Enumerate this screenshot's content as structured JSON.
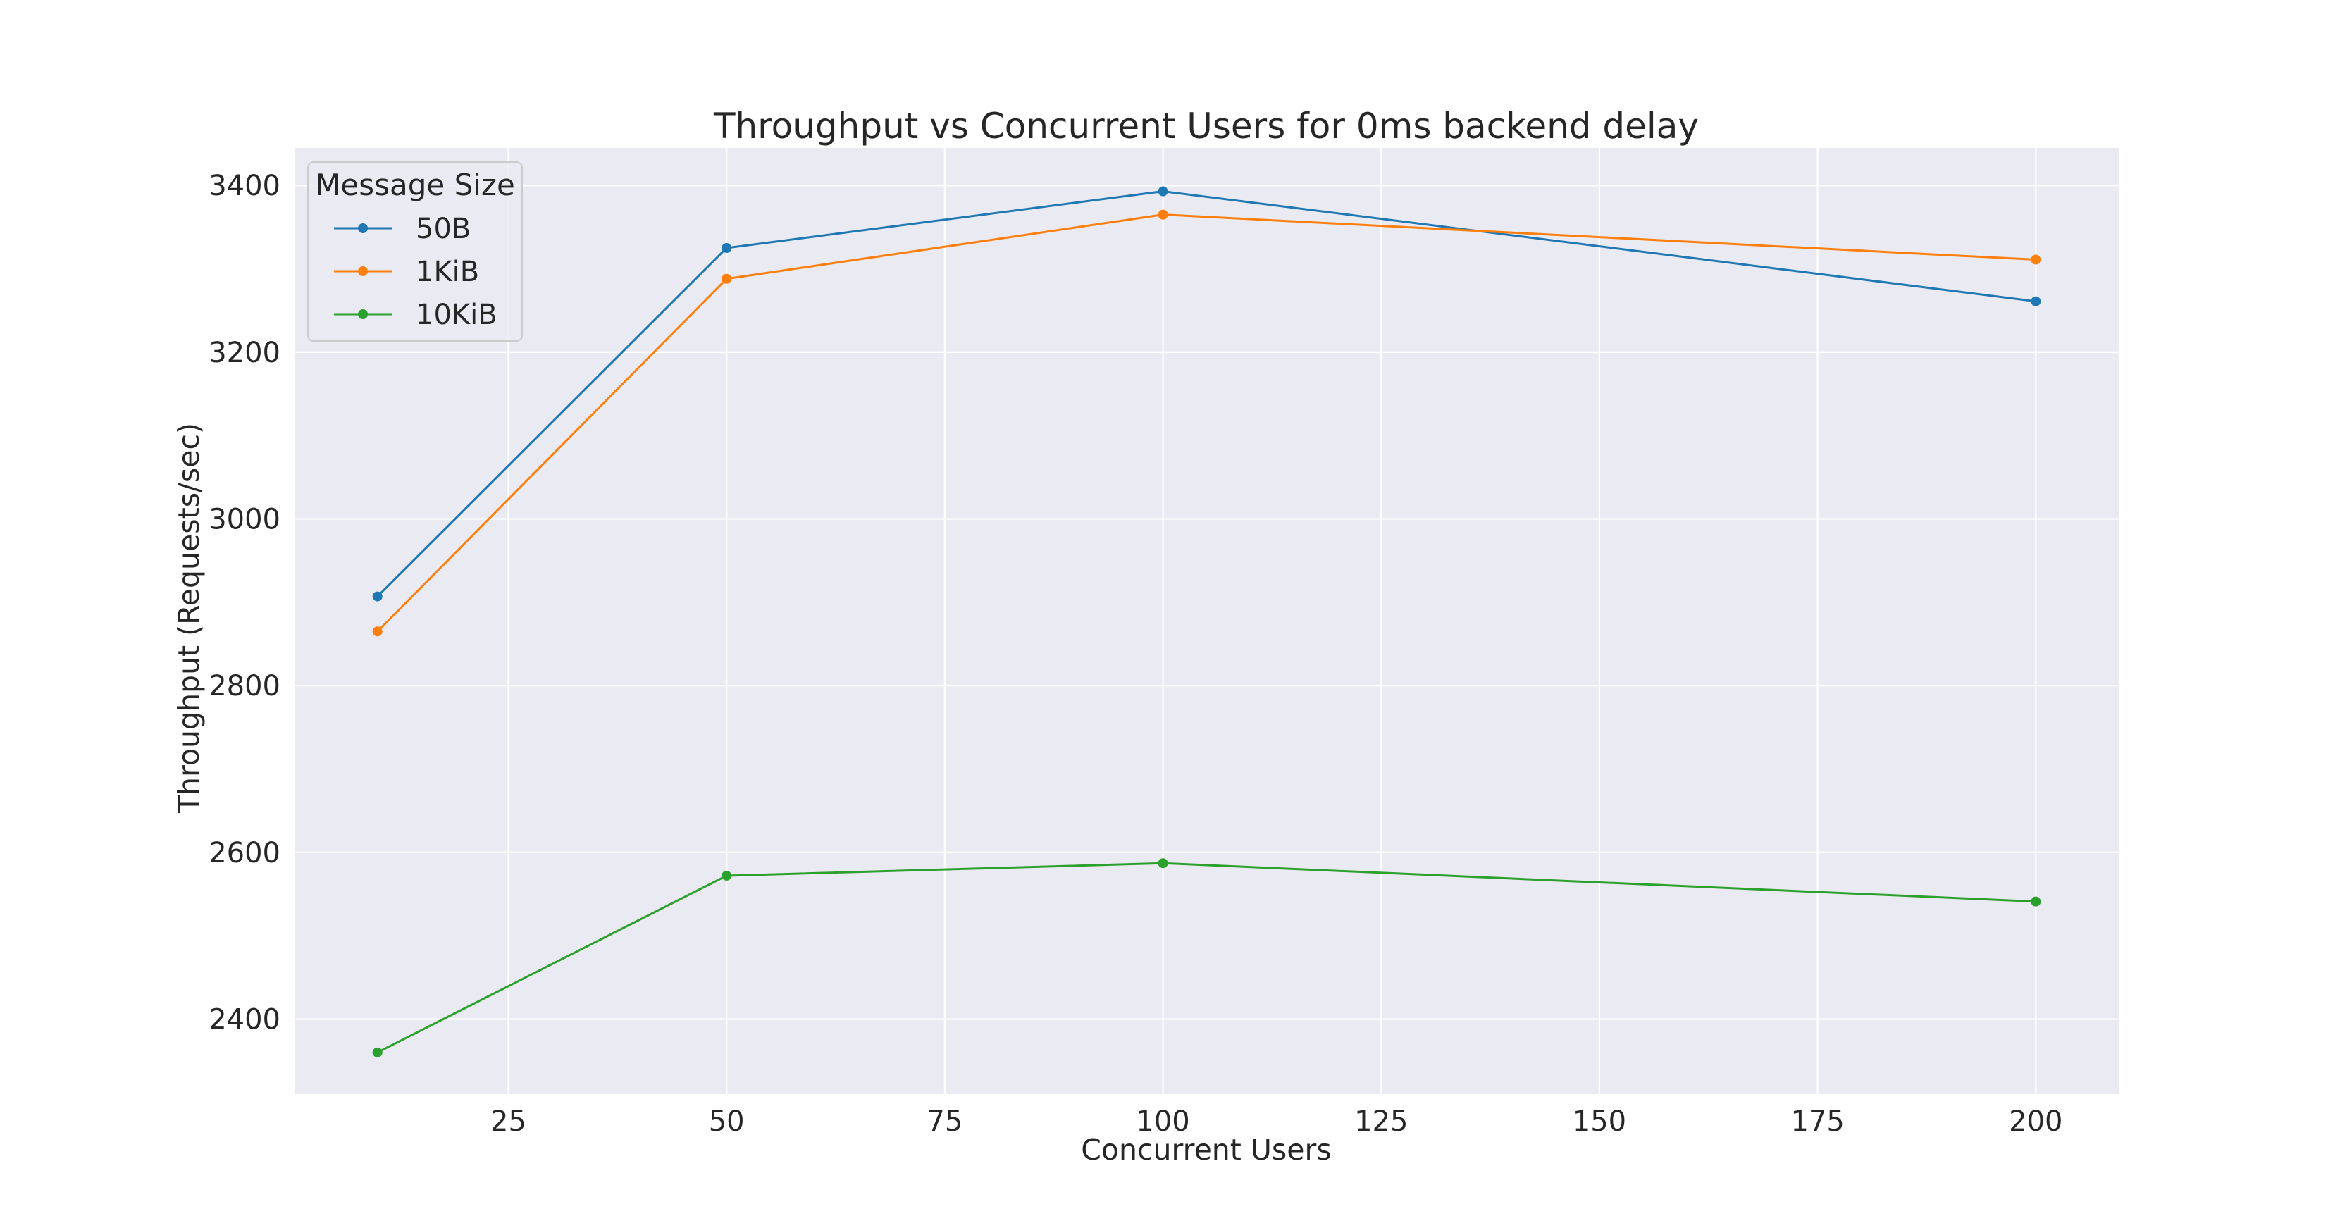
{
  "chart_data": {
    "type": "line",
    "title": "Throughput vs Concurrent Users for 0ms backend delay",
    "xlabel": "Concurrent Users",
    "ylabel": "Throughput (Requests/sec)",
    "x": [
      10,
      50,
      100,
      200
    ],
    "xlim": [
      0.5,
      209.5
    ],
    "ylim": [
      2310,
      3445
    ],
    "xticks": [
      25,
      50,
      75,
      100,
      125,
      150,
      175,
      200
    ],
    "yticks": [
      2400,
      2600,
      2800,
      3000,
      3200,
      3400
    ],
    "grid": true,
    "legend": {
      "title": "Message Size",
      "placement": "top-left"
    },
    "series": [
      {
        "name": "50B",
        "color": "#1f77b4",
        "values": [
          2907,
          3325,
          3393,
          3261
        ]
      },
      {
        "name": "1KiB",
        "color": "#ff7f0e",
        "values": [
          2865,
          3288,
          3365,
          3311
        ]
      },
      {
        "name": "10KiB",
        "color": "#2ca02c",
        "values": [
          2360,
          2572,
          2587,
          2541
        ]
      }
    ]
  },
  "style": {
    "plot_background": "#eaeaf2",
    "grid_color": "#ffffff",
    "text_color": "#262626"
  }
}
